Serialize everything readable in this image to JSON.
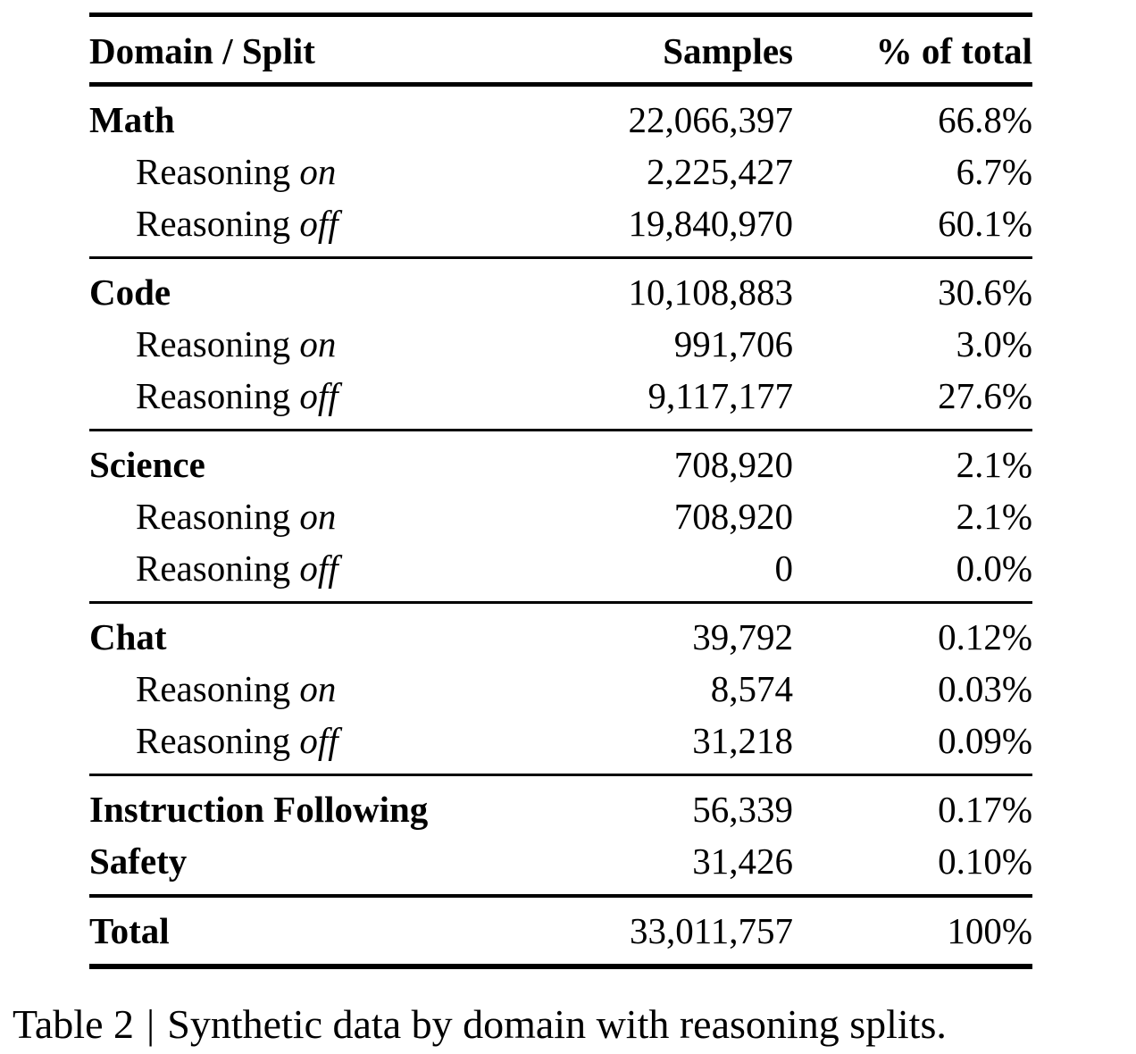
{
  "table": {
    "columns": [
      "Domain / Split",
      "Samples",
      "% of total"
    ],
    "sections": [
      {
        "name": "math",
        "rows": [
          {
            "label": "Math",
            "samples": "22,066,397",
            "pct": "66.8%"
          },
          {
            "label": "Reasoning",
            "label_em": "on",
            "samples": "2,225,427",
            "pct": "6.7%"
          },
          {
            "label": "Reasoning",
            "label_em": "off",
            "samples": "19,840,970",
            "pct": "60.1%"
          }
        ]
      },
      {
        "name": "code",
        "rows": [
          {
            "label": "Code",
            "samples": "10,108,883",
            "pct": "30.6%"
          },
          {
            "label": "Reasoning",
            "label_em": "on",
            "samples": "991,706",
            "pct": "3.0%"
          },
          {
            "label": "Reasoning",
            "label_em": "off",
            "samples": "9,117,177",
            "pct": "27.6%"
          }
        ]
      },
      {
        "name": "science",
        "rows": [
          {
            "label": "Science",
            "samples": "708,920",
            "pct": "2.1%"
          },
          {
            "label": "Reasoning",
            "label_em": "on",
            "samples": "708,920",
            "pct": "2.1%"
          },
          {
            "label": "Reasoning",
            "label_em": "off",
            "samples": "0",
            "pct": "0.0%"
          }
        ]
      },
      {
        "name": "chat",
        "rows": [
          {
            "label": "Chat",
            "samples": "39,792",
            "pct": "0.12%"
          },
          {
            "label": "Reasoning",
            "label_em": "on",
            "samples": "8,574",
            "pct": "0.03%"
          },
          {
            "label": "Reasoning",
            "label_em": "off",
            "samples": "31,218",
            "pct": "0.09%"
          }
        ]
      },
      {
        "name": "instruction-safety",
        "rows": [
          {
            "label": "Instruction Following",
            "samples": "56,339",
            "pct": "0.17%"
          },
          {
            "label": "Safety",
            "samples": "31,426",
            "pct": "0.10%"
          }
        ]
      },
      {
        "name": "total",
        "rows": [
          {
            "label": "Total",
            "samples": "33,011,757",
            "pct": "100%"
          }
        ]
      }
    ]
  },
  "caption": {
    "label": "Table 2",
    "separator": "|",
    "text": "Synthetic data by domain with reasoning splits."
  }
}
